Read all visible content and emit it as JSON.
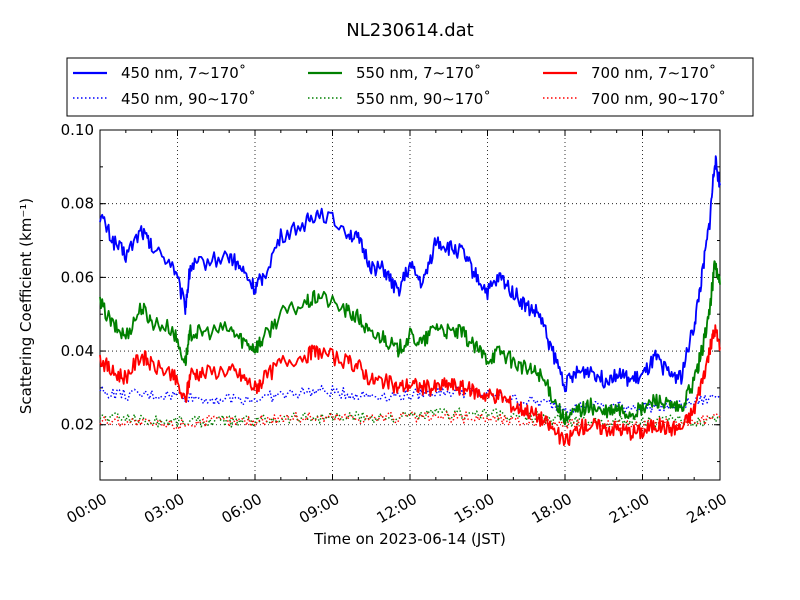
{
  "chart_data": {
    "type": "line",
    "title": "NL230614.dat",
    "xlabel": "Time on 2023-06-14 (JST)",
    "ylabel": "Scattering Coefficient (km⁻¹)",
    "xlim": [
      0,
      24
    ],
    "ylim": [
      0.005,
      0.1
    ],
    "x_tick_values": [
      0,
      3,
      6,
      9,
      12,
      15,
      18,
      21,
      24
    ],
    "x_tick_labels": [
      "00:00",
      "03:00",
      "06:00",
      "09:00",
      "12:00",
      "15:00",
      "18:00",
      "21:00",
      "24:00"
    ],
    "y_tick_values": [
      0.02,
      0.04,
      0.06,
      0.08,
      0.1
    ],
    "y_tick_labels": [
      "0.02",
      "0.04",
      "0.06",
      "0.08",
      "0.10"
    ],
    "grid": true,
    "legend_position": "top",
    "series": [
      {
        "name": "450 nm, 7∼170˚",
        "color": "#0000ff",
        "style": "solid",
        "x": [
          0,
          0.5,
          1.0,
          1.6,
          2.0,
          2.8,
          3.3,
          3.5,
          4.0,
          5.0,
          5.5,
          6.0,
          6.3,
          7.0,
          8.0,
          8.5,
          9.5,
          10.0,
          10.5,
          11.0,
          11.5,
          12.0,
          12.5,
          13.0,
          13.5,
          14.0,
          14.5,
          15.0,
          15.5,
          16.0,
          16.5,
          17.0,
          17.5,
          18.0,
          18.5,
          19.0,
          19.5,
          20.0,
          20.5,
          21.0,
          21.5,
          22.0,
          22.5,
          23.0,
          23.3,
          23.6,
          23.8,
          24.0
        ],
        "values": [
          0.077,
          0.07,
          0.066,
          0.073,
          0.068,
          0.064,
          0.052,
          0.063,
          0.064,
          0.066,
          0.062,
          0.057,
          0.06,
          0.071,
          0.075,
          0.078,
          0.073,
          0.07,
          0.063,
          0.062,
          0.056,
          0.063,
          0.058,
          0.07,
          0.068,
          0.067,
          0.061,
          0.056,
          0.06,
          0.056,
          0.052,
          0.05,
          0.04,
          0.031,
          0.034,
          0.035,
          0.032,
          0.034,
          0.032,
          0.033,
          0.038,
          0.034,
          0.033,
          0.047,
          0.06,
          0.075,
          0.092,
          0.085
        ]
      },
      {
        "name": "550 nm, 7∼170˚",
        "color": "#008000",
        "style": "solid",
        "x": [
          0,
          0.5,
          1.0,
          1.6,
          2.0,
          2.8,
          3.3,
          3.5,
          4.0,
          5.0,
          5.5,
          6.0,
          6.3,
          7.0,
          8.0,
          8.5,
          9.5,
          10.0,
          10.5,
          11.0,
          11.5,
          12.0,
          12.5,
          13.0,
          13.5,
          14.0,
          14.5,
          15.0,
          15.5,
          16.0,
          16.5,
          17.0,
          17.5,
          18.0,
          18.5,
          19.0,
          19.5,
          20.0,
          20.5,
          21.0,
          21.5,
          22.0,
          22.5,
          23.0,
          23.3,
          23.6,
          23.8,
          24.0
        ],
        "values": [
          0.053,
          0.047,
          0.044,
          0.052,
          0.048,
          0.046,
          0.037,
          0.045,
          0.045,
          0.046,
          0.043,
          0.041,
          0.043,
          0.05,
          0.053,
          0.055,
          0.051,
          0.049,
          0.044,
          0.044,
          0.04,
          0.044,
          0.042,
          0.047,
          0.045,
          0.045,
          0.041,
          0.038,
          0.04,
          0.037,
          0.035,
          0.034,
          0.028,
          0.021,
          0.024,
          0.025,
          0.023,
          0.024,
          0.023,
          0.024,
          0.027,
          0.025,
          0.024,
          0.032,
          0.04,
          0.051,
          0.064,
          0.058
        ]
      },
      {
        "name": "700 nm, 7∼170˚",
        "color": "#ff0000",
        "style": "solid",
        "x": [
          0,
          0.5,
          1.0,
          1.6,
          2.0,
          2.8,
          3.3,
          3.5,
          4.0,
          5.0,
          5.5,
          6.0,
          6.3,
          7.0,
          8.0,
          8.5,
          9.5,
          10.0,
          10.5,
          11.0,
          11.5,
          12.0,
          12.5,
          13.0,
          13.5,
          14.0,
          14.5,
          15.0,
          15.5,
          16.0,
          16.5,
          17.0,
          17.5,
          18.0,
          18.5,
          19.0,
          19.5,
          20.0,
          20.5,
          21.0,
          21.5,
          22.0,
          22.5,
          23.0,
          23.3,
          23.6,
          23.8,
          24.0
        ],
        "values": [
          0.038,
          0.034,
          0.033,
          0.039,
          0.036,
          0.034,
          0.026,
          0.034,
          0.034,
          0.035,
          0.033,
          0.03,
          0.032,
          0.037,
          0.039,
          0.04,
          0.037,
          0.036,
          0.032,
          0.032,
          0.03,
          0.031,
          0.03,
          0.03,
          0.031,
          0.03,
          0.029,
          0.028,
          0.028,
          0.025,
          0.024,
          0.022,
          0.019,
          0.015,
          0.019,
          0.02,
          0.019,
          0.019,
          0.018,
          0.018,
          0.02,
          0.019,
          0.019,
          0.024,
          0.032,
          0.04,
          0.046,
          0.041
        ]
      },
      {
        "name": "450 nm, 90∼170˚",
        "color": "#0000ff",
        "style": "dotted",
        "x": [
          0,
          1,
          2,
          3,
          4,
          5,
          6,
          7,
          8,
          9,
          10,
          11,
          12,
          13,
          14,
          15,
          16,
          17,
          18,
          19,
          20,
          21,
          22,
          23,
          24
        ],
        "values": [
          0.029,
          0.028,
          0.028,
          0.028,
          0.027,
          0.027,
          0.027,
          0.028,
          0.029,
          0.029,
          0.028,
          0.028,
          0.028,
          0.029,
          0.029,
          0.028,
          0.027,
          0.026,
          0.025,
          0.025,
          0.025,
          0.025,
          0.025,
          0.026,
          0.028
        ]
      },
      {
        "name": "550 nm, 90∼170˚",
        "color": "#008000",
        "style": "dotted",
        "x": [
          0,
          1,
          2,
          3,
          4,
          5,
          6,
          7,
          8,
          9,
          10,
          11,
          12,
          13,
          14,
          15,
          16,
          17,
          18,
          19,
          20,
          21,
          22,
          23,
          24
        ],
        "values": [
          0.022,
          0.022,
          0.021,
          0.021,
          0.021,
          0.021,
          0.021,
          0.022,
          0.022,
          0.022,
          0.022,
          0.022,
          0.022,
          0.023,
          0.023,
          0.023,
          0.022,
          0.022,
          0.021,
          0.021,
          0.021,
          0.021,
          0.021,
          0.021,
          0.022
        ]
      },
      {
        "name": "700 nm, 90∼170˚",
        "color": "#ff0000",
        "style": "dotted",
        "x": [
          0,
          1,
          2,
          3,
          4,
          5,
          6,
          7,
          8,
          9,
          10,
          11,
          12,
          13,
          14,
          15,
          16,
          17,
          18,
          19,
          20,
          21,
          22,
          23,
          24
        ],
        "values": [
          0.021,
          0.021,
          0.02,
          0.02,
          0.021,
          0.021,
          0.021,
          0.022,
          0.022,
          0.022,
          0.022,
          0.022,
          0.022,
          0.022,
          0.022,
          0.022,
          0.021,
          0.021,
          0.02,
          0.02,
          0.02,
          0.02,
          0.02,
          0.021,
          0.022
        ]
      }
    ]
  }
}
